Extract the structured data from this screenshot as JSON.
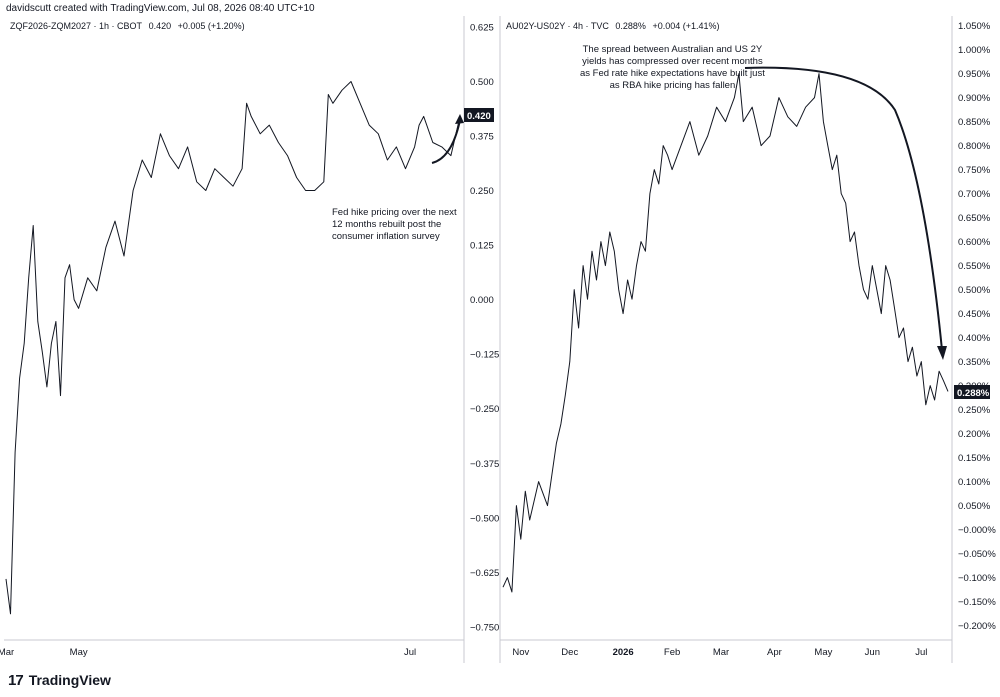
{
  "header": {
    "text": "davidscutt created with TradingView.com, Jul 08, 2026 08:40 UTC+10"
  },
  "footer": {
    "logo_glyph": "17",
    "brand": "TradingView"
  },
  "line_color": "#131722",
  "chart_data": [
    {
      "type": "line",
      "symbol": "ZQF2026-ZQM2027 · 1h · CBOT",
      "last": "0.420",
      "change": "+0.005 (+1.20%)",
      "price_label": "0.420",
      "ylim": [
        -0.78,
        0.65
      ],
      "yticks": [
        "0.625",
        "0.500",
        "0.375",
        "0.250",
        "0.125",
        "0.000",
        "−0.125",
        "−0.250",
        "−0.375",
        "−0.500",
        "−0.625",
        "−0.750"
      ],
      "ytick_values": [
        0.625,
        0.5,
        0.375,
        0.25,
        0.125,
        0,
        -0.125,
        -0.25,
        -0.375,
        -0.5,
        -0.625,
        -0.75
      ],
      "xticks": [
        "Mar",
        "May",
        "Jul"
      ],
      "xtick_values": [
        0,
        0.16,
        0.89
      ],
      "x": [
        0,
        0.01,
        0.02,
        0.03,
        0.04,
        0.05,
        0.06,
        0.07,
        0.08,
        0.09,
        0.1,
        0.11,
        0.12,
        0.13,
        0.14,
        0.15,
        0.16,
        0.18,
        0.2,
        0.22,
        0.24,
        0.26,
        0.28,
        0.3,
        0.32,
        0.34,
        0.36,
        0.38,
        0.4,
        0.42,
        0.44,
        0.46,
        0.48,
        0.5,
        0.52,
        0.53,
        0.54,
        0.56,
        0.58,
        0.6,
        0.62,
        0.64,
        0.66,
        0.68,
        0.7,
        0.71,
        0.72,
        0.74,
        0.76,
        0.78,
        0.8,
        0.82,
        0.84,
        0.86,
        0.88,
        0.9,
        0.91,
        0.92,
        0.94,
        0.96,
        0.98,
        1.0
      ],
      "values": [
        -0.64,
        -0.72,
        -0.35,
        -0.18,
        -0.1,
        0.05,
        0.17,
        -0.05,
        -0.12,
        -0.2,
        -0.1,
        -0.05,
        -0.22,
        0.05,
        0.08,
        0.0,
        -0.02,
        0.05,
        0.02,
        0.12,
        0.18,
        0.1,
        0.25,
        0.32,
        0.28,
        0.38,
        0.33,
        0.3,
        0.35,
        0.27,
        0.25,
        0.3,
        0.28,
        0.26,
        0.3,
        0.45,
        0.42,
        0.38,
        0.4,
        0.36,
        0.33,
        0.28,
        0.25,
        0.25,
        0.27,
        0.47,
        0.45,
        0.48,
        0.5,
        0.45,
        0.4,
        0.38,
        0.32,
        0.35,
        0.3,
        0.35,
        0.4,
        0.42,
        0.36,
        0.35,
        0.33,
        0.42
      ]
    },
    {
      "type": "line",
      "symbol": "AU02Y-US02Y · 4h · TVC",
      "last": "0.288%",
      "change": "+0.004 (+1.41%)",
      "price_label": "0.288%",
      "ylim": [
        -0.23,
        1.07
      ],
      "yticks": [
        "1.050%",
        "1.000%",
        "0.950%",
        "0.900%",
        "0.850%",
        "0.800%",
        "0.750%",
        "0.700%",
        "0.650%",
        "0.600%",
        "0.550%",
        "0.500%",
        "0.450%",
        "0.400%",
        "0.350%",
        "0.300%",
        "0.250%",
        "0.200%",
        "0.150%",
        "0.100%",
        "0.050%",
        "−0.000%",
        "−0.050%",
        "−0.100%",
        "−0.150%",
        "−0.200%"
      ],
      "ytick_values": [
        1.05,
        1.0,
        0.95,
        0.9,
        0.85,
        0.8,
        0.75,
        0.7,
        0.65,
        0.6,
        0.55,
        0.5,
        0.45,
        0.4,
        0.35,
        0.3,
        0.25,
        0.2,
        0.15,
        0.1,
        0.05,
        0,
        -0.05,
        -0.1,
        -0.15,
        -0.2
      ],
      "xticks": [
        "Nov",
        "Dec",
        "2026",
        "Feb",
        "Mar",
        "Apr",
        "May",
        "Jun",
        "Jul"
      ],
      "xtick_values": [
        0.04,
        0.15,
        0.27,
        0.38,
        0.49,
        0.61,
        0.72,
        0.83,
        0.94
      ],
      "xtick_bold": "2026",
      "x": [
        0,
        0.01,
        0.02,
        0.03,
        0.04,
        0.05,
        0.06,
        0.08,
        0.1,
        0.12,
        0.13,
        0.14,
        0.15,
        0.16,
        0.17,
        0.18,
        0.19,
        0.2,
        0.21,
        0.22,
        0.23,
        0.24,
        0.25,
        0.26,
        0.27,
        0.28,
        0.29,
        0.3,
        0.31,
        0.32,
        0.33,
        0.34,
        0.35,
        0.36,
        0.37,
        0.38,
        0.4,
        0.42,
        0.44,
        0.46,
        0.48,
        0.5,
        0.52,
        0.53,
        0.54,
        0.56,
        0.58,
        0.6,
        0.62,
        0.64,
        0.66,
        0.68,
        0.7,
        0.71,
        0.72,
        0.73,
        0.74,
        0.75,
        0.76,
        0.77,
        0.78,
        0.79,
        0.8,
        0.81,
        0.82,
        0.83,
        0.84,
        0.85,
        0.86,
        0.87,
        0.88,
        0.89,
        0.9,
        0.91,
        0.92,
        0.93,
        0.94,
        0.95,
        0.96,
        0.97,
        0.98,
        0.99,
        1.0
      ],
      "values": [
        -0.12,
        -0.1,
        -0.13,
        0.05,
        -0.02,
        0.08,
        0.02,
        0.1,
        0.05,
        0.18,
        0.22,
        0.28,
        0.35,
        0.5,
        0.42,
        0.55,
        0.48,
        0.58,
        0.52,
        0.6,
        0.55,
        0.62,
        0.58,
        0.5,
        0.45,
        0.52,
        0.48,
        0.55,
        0.6,
        0.58,
        0.7,
        0.75,
        0.72,
        0.8,
        0.78,
        0.75,
        0.8,
        0.85,
        0.78,
        0.82,
        0.88,
        0.85,
        0.9,
        0.95,
        0.85,
        0.88,
        0.8,
        0.82,
        0.9,
        0.86,
        0.84,
        0.88,
        0.9,
        0.95,
        0.85,
        0.8,
        0.75,
        0.78,
        0.7,
        0.68,
        0.6,
        0.62,
        0.55,
        0.5,
        0.48,
        0.55,
        0.5,
        0.45,
        0.55,
        0.52,
        0.46,
        0.4,
        0.42,
        0.35,
        0.38,
        0.32,
        0.35,
        0.26,
        0.3,
        0.27,
        0.33,
        0.31,
        0.288
      ]
    }
  ],
  "annotations": {
    "left_note": [
      "Fed hike pricing over the next",
      "12 months rebuilt post the",
      "consumer inflation survey"
    ],
    "right_note": [
      "The spread between Australian and US 2Y",
      "yields has compressed over recent months",
      "as Fed rate hike expectations have built just",
      "as RBA hike pricing has fallen"
    ]
  }
}
